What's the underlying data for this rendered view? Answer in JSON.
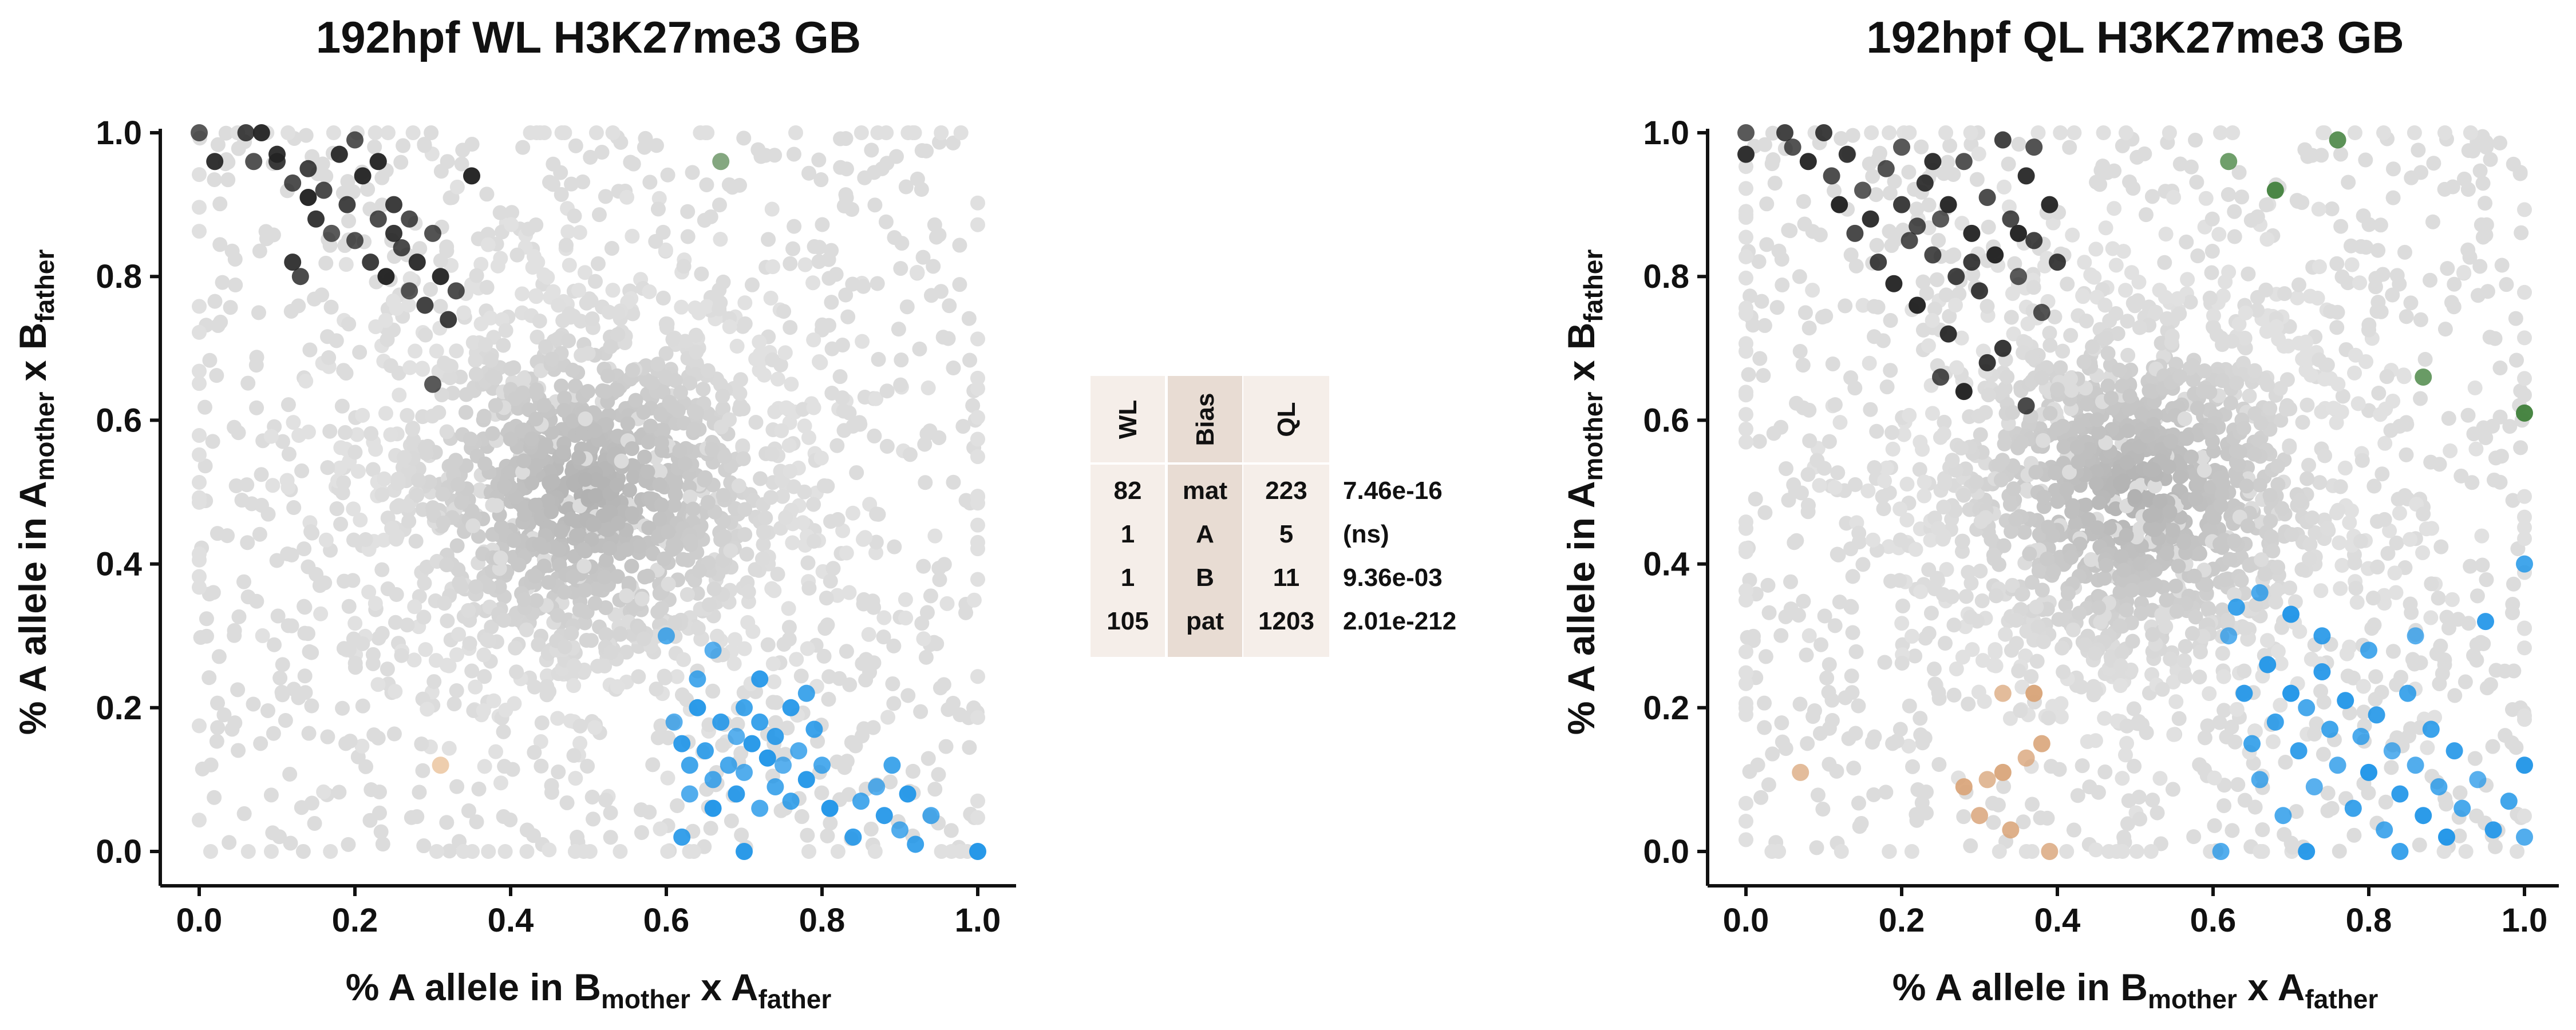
{
  "chart_data": [
    {
      "type": "scatter",
      "title": "192hpf WL H3K27me3 GB",
      "xlabel": {
        "prefix": "% A allele in B",
        "sub1": "mother",
        "mid": " x A",
        "sub2": "father"
      },
      "ylabel": {
        "prefix": "% A allele in A",
        "sub1": "mother",
        "mid": " x B",
        "sub2": "father"
      },
      "xlim": [
        0,
        1
      ],
      "ylim": [
        0,
        1
      ],
      "xticks": [
        "0.0",
        "0.2",
        "0.4",
        "0.6",
        "0.8",
        "1.0"
      ],
      "yticks": [
        "0.0",
        "0.2",
        "0.4",
        "0.6",
        "0.8",
        "1.0"
      ],
      "grid": false,
      "series": [
        {
          "category": "mat",
          "color": "#222222",
          "points": [
            [
              0.0,
              1.0
            ],
            [
              0.02,
              0.96
            ],
            [
              0.06,
              1.0
            ],
            [
              0.07,
              0.96
            ],
            [
              0.08,
              1.0
            ],
            [
              0.1,
              0.96
            ],
            [
              0.12,
              0.93
            ],
            [
              0.14,
              0.91
            ],
            [
              0.15,
              0.88
            ],
            [
              0.16,
              0.92
            ],
            [
              0.17,
              0.86
            ],
            [
              0.18,
              0.97
            ],
            [
              0.19,
              0.9
            ],
            [
              0.2,
              0.85
            ],
            [
              0.21,
              0.94
            ],
            [
              0.22,
              0.82
            ],
            [
              0.23,
              0.88
            ],
            [
              0.24,
              0.8
            ],
            [
              0.25,
              0.86
            ],
            [
              0.26,
              0.84
            ],
            [
              0.27,
              0.78
            ],
            [
              0.28,
              0.82
            ],
            [
              0.29,
              0.76
            ],
            [
              0.3,
              0.86
            ],
            [
              0.31,
              0.8
            ],
            [
              0.32,
              0.74
            ],
            [
              0.33,
              0.78
            ],
            [
              0.35,
              0.94
            ],
            [
              0.12,
              0.82
            ],
            [
              0.13,
              0.8
            ],
            [
              0.3,
              0.65
            ],
            [
              0.1,
              0.97
            ],
            [
              0.14,
              0.95
            ],
            [
              0.2,
              0.99
            ],
            [
              0.23,
              0.96
            ],
            [
              0.25,
              0.9
            ],
            [
              0.27,
              0.88
            ]
          ]
        },
        {
          "category": "A",
          "color": "#5b8a55",
          "points": [
            [
              0.67,
              0.96
            ]
          ]
        },
        {
          "category": "B",
          "color": "#e8bd93",
          "points": [
            [
              0.31,
              0.12
            ]
          ]
        },
        {
          "category": "pat",
          "color": "#2196e8",
          "points": [
            [
              0.61,
              0.18
            ],
            [
              0.62,
              0.15
            ],
            [
              0.63,
              0.12
            ],
            [
              0.63,
              0.08
            ],
            [
              0.64,
              0.2
            ],
            [
              0.65,
              0.14
            ],
            [
              0.66,
              0.1
            ],
            [
              0.66,
              0.06
            ],
            [
              0.67,
              0.18
            ],
            [
              0.68,
              0.12
            ],
            [
              0.69,
              0.16
            ],
            [
              0.69,
              0.08
            ],
            [
              0.7,
              0.2
            ],
            [
              0.7,
              0.11
            ],
            [
              0.71,
              0.15
            ],
            [
              0.72,
              0.18
            ],
            [
              0.72,
              0.06
            ],
            [
              0.73,
              0.13
            ],
            [
              0.74,
              0.16
            ],
            [
              0.74,
              0.09
            ],
            [
              0.75,
              0.12
            ],
            [
              0.76,
              0.2
            ],
            [
              0.76,
              0.07
            ],
            [
              0.77,
              0.14
            ],
            [
              0.78,
              0.1
            ],
            [
              0.79,
              0.17
            ],
            [
              0.8,
              0.12
            ],
            [
              0.81,
              0.06
            ],
            [
              0.84,
              0.02
            ],
            [
              0.85,
              0.07
            ],
            [
              0.87,
              0.09
            ],
            [
              0.88,
              0.05
            ],
            [
              0.89,
              0.12
            ],
            [
              0.9,
              0.03
            ],
            [
              0.91,
              0.08
            ],
            [
              0.92,
              0.01
            ],
            [
              0.94,
              0.05
            ],
            [
              1.0,
              0.0
            ],
            [
              0.62,
              0.02
            ],
            [
              0.64,
              0.24
            ],
            [
              0.66,
              0.28
            ],
            [
              0.72,
              0.24
            ],
            [
              0.78,
              0.22
            ],
            [
              0.6,
              0.3
            ],
            [
              0.7,
              0.0
            ]
          ]
        }
      ],
      "background_color": "#dadada"
    },
    {
      "type": "table",
      "columns": [
        "WL",
        "Bias",
        "QL"
      ],
      "rows": [
        {
          "WL": "82",
          "Bias": "mat",
          "QL": "223",
          "p": "7.46e-16",
          "bias_color": "#222222"
        },
        {
          "WL": "1",
          "Bias": "A",
          "QL": "5",
          "p": "(ns)",
          "bias_color": "#3f7f3a"
        },
        {
          "WL": "1",
          "Bias": "B",
          "QL": "11",
          "p": "9.36e-03",
          "bias_color": "#d9a57a"
        },
        {
          "WL": "105",
          "Bias": "pat",
          "QL": "1203",
          "p": "2.01e-212",
          "bias_color": "#53aee8"
        }
      ]
    },
    {
      "type": "scatter",
      "title": "192hpf QL H3K27me3 GB",
      "xlabel": {
        "prefix": "% A allele in B",
        "sub1": "mother",
        "mid": " x A",
        "sub2": "father"
      },
      "ylabel": {
        "prefix": "% A allele in A",
        "sub1": "mother",
        "mid": " x B",
        "sub2": "father"
      },
      "xlim": [
        0,
        1
      ],
      "ylim": [
        0,
        1
      ],
      "xticks": [
        "0.0",
        "0.2",
        "0.4",
        "0.6",
        "0.8",
        "1.0"
      ],
      "yticks": [
        "0.0",
        "0.2",
        "0.4",
        "0.6",
        "0.8",
        "1.0"
      ],
      "grid": false,
      "series": [
        {
          "category": "mat",
          "color": "#222222",
          "points": [
            [
              0.0,
              1.0
            ],
            [
              0.0,
              0.97
            ],
            [
              0.05,
              1.0
            ],
            [
              0.06,
              0.98
            ],
            [
              0.08,
              0.96
            ],
            [
              0.1,
              1.0
            ],
            [
              0.11,
              0.94
            ],
            [
              0.12,
              0.9
            ],
            [
              0.13,
              0.97
            ],
            [
              0.14,
              0.86
            ],
            [
              0.15,
              0.92
            ],
            [
              0.16,
              0.88
            ],
            [
              0.17,
              0.82
            ],
            [
              0.18,
              0.95
            ],
            [
              0.19,
              0.79
            ],
            [
              0.2,
              0.9
            ],
            [
              0.21,
              0.85
            ],
            [
              0.22,
              0.76
            ],
            [
              0.23,
              0.93
            ],
            [
              0.24,
              0.83
            ],
            [
              0.25,
              0.88
            ],
            [
              0.26,
              0.72
            ],
            [
              0.27,
              0.8
            ],
            [
              0.28,
              0.96
            ],
            [
              0.29,
              0.86
            ],
            [
              0.3,
              0.78
            ],
            [
              0.31,
              0.91
            ],
            [
              0.32,
              0.83
            ],
            [
              0.33,
              0.7
            ],
            [
              0.34,
              0.88
            ],
            [
              0.35,
              0.8
            ],
            [
              0.36,
              0.94
            ],
            [
              0.37,
              0.85
            ],
            [
              0.38,
              0.75
            ],
            [
              0.39,
              0.9
            ],
            [
              0.4,
              0.82
            ],
            [
              0.25,
              0.66
            ],
            [
              0.28,
              0.64
            ],
            [
              0.31,
              0.68
            ],
            [
              0.36,
              0.62
            ],
            [
              0.2,
              0.98
            ],
            [
              0.24,
              0.96
            ],
            [
              0.33,
              0.99
            ],
            [
              0.37,
              0.98
            ],
            [
              0.26,
              0.9
            ],
            [
              0.29,
              0.82
            ],
            [
              0.22,
              0.87
            ],
            [
              0.35,
              0.86
            ]
          ]
        },
        {
          "category": "A",
          "color": "#3f7f3a",
          "points": [
            [
              0.62,
              0.96
            ],
            [
              0.68,
              0.92
            ],
            [
              0.76,
              0.99
            ],
            [
              0.87,
              0.66
            ],
            [
              1.0,
              0.61
            ]
          ]
        },
        {
          "category": "B",
          "color": "#d9a57a",
          "points": [
            [
              0.07,
              0.11
            ],
            [
              0.28,
              0.09
            ],
            [
              0.3,
              0.05
            ],
            [
              0.31,
              0.1
            ],
            [
              0.33,
              0.11
            ],
            [
              0.34,
              0.03
            ],
            [
              0.36,
              0.13
            ],
            [
              0.37,
              0.22
            ],
            [
              0.38,
              0.15
            ],
            [
              0.39,
              0.0
            ],
            [
              0.33,
              0.22
            ]
          ]
        },
        {
          "category": "pat",
          "color": "#2196e8",
          "points": [
            [
              0.62,
              0.3
            ],
            [
              0.64,
              0.22
            ],
            [
              0.65,
              0.15
            ],
            [
              0.66,
              0.1
            ],
            [
              0.67,
              0.26
            ],
            [
              0.68,
              0.18
            ],
            [
              0.69,
              0.05
            ],
            [
              0.7,
              0.22
            ],
            [
              0.71,
              0.14
            ],
            [
              0.72,
              0.2
            ],
            [
              0.73,
              0.09
            ],
            [
              0.74,
              0.25
            ],
            [
              0.75,
              0.17
            ],
            [
              0.76,
              0.12
            ],
            [
              0.77,
              0.21
            ],
            [
              0.78,
              0.06
            ],
            [
              0.79,
              0.16
            ],
            [
              0.8,
              0.11
            ],
            [
              0.81,
              0.19
            ],
            [
              0.82,
              0.03
            ],
            [
              0.83,
              0.14
            ],
            [
              0.84,
              0.08
            ],
            [
              0.85,
              0.22
            ],
            [
              0.86,
              0.12
            ],
            [
              0.87,
              0.05
            ],
            [
              0.88,
              0.17
            ],
            [
              0.89,
              0.09
            ],
            [
              0.9,
              0.02
            ],
            [
              0.91,
              0.14
            ],
            [
              0.92,
              0.06
            ],
            [
              0.94,
              0.1
            ],
            [
              0.96,
              0.03
            ],
            [
              0.98,
              0.07
            ],
            [
              1.0,
              0.02
            ],
            [
              1.0,
              0.12
            ],
            [
              0.63,
              0.34
            ],
            [
              0.66,
              0.36
            ],
            [
              0.7,
              0.33
            ],
            [
              0.74,
              0.3
            ],
            [
              0.8,
              0.28
            ],
            [
              0.86,
              0.3
            ],
            [
              0.95,
              0.32
            ],
            [
              1.0,
              0.4
            ],
            [
              0.61,
              0.0
            ],
            [
              0.72,
              0.0
            ],
            [
              0.84,
              0.0
            ]
          ]
        }
      ],
      "background_color": "#dadada"
    }
  ]
}
